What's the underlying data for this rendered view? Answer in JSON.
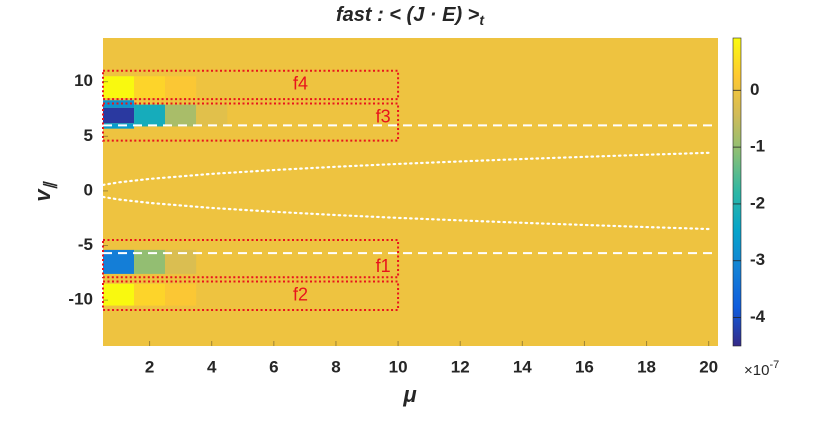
{
  "chart_data": {
    "type": "heatmap",
    "title": "fast : < (J · E) >",
    "title_subscript": "t",
    "x_label": "μ",
    "y_label": "v",
    "y_label_subscript": "∥",
    "xlim": [
      0.5,
      20.3
    ],
    "ylim": [
      -14.2,
      14
    ],
    "xticks": [
      2,
      4,
      6,
      8,
      10,
      12,
      14,
      16,
      18,
      20
    ],
    "yticks": [
      -10,
      -5,
      0,
      5,
      10
    ],
    "clim": [
      -4.5,
      0.92
    ],
    "cticks": [
      -4,
      -3,
      -2,
      -1,
      0
    ],
    "colorbar_exponent_base": "×10",
    "colorbar_exponent_power": "-7",
    "colormap": [
      "#352a87",
      "#0f5cdd",
      "#1481d6",
      "#06a4ca",
      "#2eb7a4",
      "#87bf77",
      "#d1bb59",
      "#fec832",
      "#f9fb0e"
    ],
    "background_value": 0,
    "cells": [
      {
        "x": [
          0.5,
          1.5
        ],
        "y": [
          8.5,
          10.5
        ],
        "value": 0.9
      },
      {
        "x": [
          1.5,
          2.5
        ],
        "y": [
          8.5,
          10.5
        ],
        "value": 0.4
      },
      {
        "x": [
          2.5,
          3.5
        ],
        "y": [
          8.5,
          10.5
        ],
        "value": 0.2
      },
      {
        "x": [
          0.5,
          1.5
        ],
        "y": [
          7.6,
          8.3
        ],
        "value": -2.8
      },
      {
        "x": [
          0.5,
          1.5
        ],
        "y": [
          6.2,
          7.6
        ],
        "value": -4.3
      },
      {
        "x": [
          0.5,
          1.5
        ],
        "y": [
          5.7,
          6.2
        ],
        "value": -2.6
      },
      {
        "x": [
          1.5,
          2.5
        ],
        "y": [
          5.9,
          7.9
        ],
        "value": -2.2
      },
      {
        "x": [
          2.5,
          3.5
        ],
        "y": [
          5.9,
          7.9
        ],
        "value": -0.8
      },
      {
        "x": [
          3.5,
          4.5
        ],
        "y": [
          5.9,
          7.9
        ],
        "value": -0.2
      },
      {
        "x": [
          0.5,
          1.5
        ],
        "y": [
          -7.6,
          -5.4
        ],
        "value": -3.2
      },
      {
        "x": [
          1.5,
          2.5
        ],
        "y": [
          -7.6,
          -5.4
        ],
        "value": -1.0
      },
      {
        "x": [
          2.5,
          3.5
        ],
        "y": [
          -7.6,
          -5.4
        ],
        "value": -0.3
      },
      {
        "x": [
          0.5,
          1.5
        ],
        "y": [
          -10.5,
          -8.5
        ],
        "value": 0.9
      },
      {
        "x": [
          1.5,
          2.5
        ],
        "y": [
          -10.5,
          -8.5
        ],
        "value": 0.4
      },
      {
        "x": [
          2.5,
          3.5
        ],
        "y": [
          -10.5,
          -8.5
        ],
        "value": 0.2
      }
    ],
    "hlines": [
      6,
      -5.7
    ],
    "curves": [
      {
        "x": [
          0.5,
          1,
          2,
          4,
          6,
          8,
          10,
          12,
          14,
          16,
          18,
          20
        ],
        "values": [
          0.55,
          0.78,
          1.1,
          1.56,
          1.91,
          2.21,
          2.47,
          2.7,
          2.92,
          3.12,
          3.31,
          3.49
        ]
      },
      {
        "x": [
          0.5,
          1,
          2,
          4,
          6,
          8,
          10,
          12,
          14,
          16,
          18,
          20
        ],
        "values": [
          -0.55,
          -0.78,
          -1.1,
          -1.56,
          -1.91,
          -2.21,
          -2.47,
          -2.7,
          -2.92,
          -3.12,
          -3.31,
          -3.49
        ]
      }
    ],
    "boxes": [
      {
        "label": "f4",
        "x": [
          0.5,
          10
        ],
        "y": [
          8.4,
          11
        ]
      },
      {
        "label": "f3",
        "x": [
          0.5,
          10
        ],
        "y": [
          4.6,
          8
        ]
      },
      {
        "label": "f1",
        "x": [
          0.5,
          10
        ],
        "y": [
          -7.9,
          -4.5
        ]
      },
      {
        "label": "f2",
        "x": [
          0.5,
          10
        ],
        "y": [
          -10.9,
          -8.3
        ]
      }
    ],
    "box_color": "#e8141c",
    "line_color": "#ffffff"
  }
}
